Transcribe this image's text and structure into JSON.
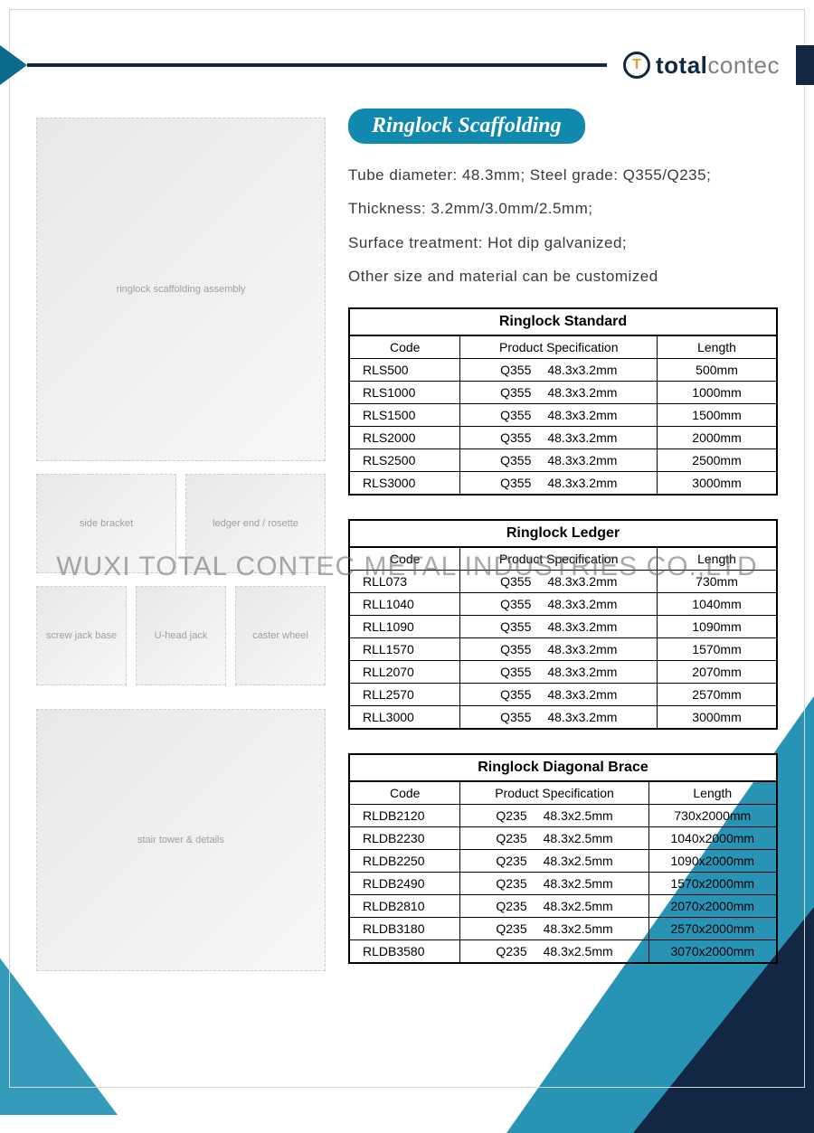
{
  "brand": {
    "strong": "total",
    "light": "contec"
  },
  "title": "Ringlock Scaffolding",
  "title_bg": "#1188ad",
  "title_fg": "#ffffff",
  "specs": [
    "Tube diameter: 48.3mm;  Steel grade: Q355/Q235;",
    "Thickness: 3.2mm/3.0mm/2.5mm;",
    "Surface treatment: Hot dip galvanized;",
    "Other size and material can be customized"
  ],
  "watermark": "WUXI TOTAL CONTEC METAL INDUSTRIES CO.,LTD",
  "colors": {
    "accent": "#1188ad",
    "dark": "#122744",
    "border": "#000000",
    "text": "#3a3a3a"
  },
  "image_placeholders": {
    "main": "ringlock scaffolding assembly",
    "row1a": "side bracket",
    "row1b": "ledger end / rosette",
    "row2a": "screw jack base",
    "row2b": "U-head jack",
    "row2c": "caster wheel",
    "stair": "stair tower & details"
  },
  "tables": [
    {
      "title": "Ringlock Standard",
      "columns": [
        "Code",
        "Product Specification",
        "Length"
      ],
      "col_widths": [
        "26%",
        "46%",
        "28%"
      ],
      "rows": [
        [
          "RLS500",
          {
            "grade": "Q355",
            "dim": "48.3x3.2mm"
          },
          "500mm"
        ],
        [
          "RLS1000",
          {
            "grade": "Q355",
            "dim": "48.3x3.2mm"
          },
          "1000mm"
        ],
        [
          "RLS1500",
          {
            "grade": "Q355",
            "dim": "48.3x3.2mm"
          },
          "1500mm"
        ],
        [
          "RLS2000",
          {
            "grade": "Q355",
            "dim": "48.3x3.2mm"
          },
          "2000mm"
        ],
        [
          "RLS2500",
          {
            "grade": "Q355",
            "dim": "48.3x3.2mm"
          },
          "2500mm"
        ],
        [
          "RLS3000",
          {
            "grade": "Q355",
            "dim": "48.3x3.2mm"
          },
          "3000mm"
        ]
      ]
    },
    {
      "title": "Ringlock Ledger",
      "columns": [
        "Code",
        "Product Specification",
        "Length"
      ],
      "col_widths": [
        "26%",
        "46%",
        "28%"
      ],
      "rows": [
        [
          "RLL073",
          {
            "grade": "Q355",
            "dim": "48.3x3.2mm"
          },
          "730mm"
        ],
        [
          "RLL1040",
          {
            "grade": "Q355",
            "dim": "48.3x3.2mm"
          },
          "1040mm"
        ],
        [
          "RLL1090",
          {
            "grade": "Q355",
            "dim": "48.3x3.2mm"
          },
          "1090mm"
        ],
        [
          "RLL1570",
          {
            "grade": "Q355",
            "dim": "48.3x3.2mm"
          },
          "1570mm"
        ],
        [
          "RLL2070",
          {
            "grade": "Q355",
            "dim": "48.3x3.2mm"
          },
          "2070mm"
        ],
        [
          "RLL2570",
          {
            "grade": "Q355",
            "dim": "48.3x3.2mm"
          },
          "2570mm"
        ],
        [
          "RLL3000",
          {
            "grade": "Q355",
            "dim": "48.3x3.2mm"
          },
          "3000mm"
        ]
      ]
    },
    {
      "title": "Ringlock Diagonal Brace",
      "columns": [
        "Code",
        "Product Specification",
        "Length"
      ],
      "col_widths": [
        "26%",
        "44%",
        "30%"
      ],
      "rows": [
        [
          "RLDB2120",
          {
            "grade": "Q235",
            "dim": "48.3x2.5mm"
          },
          "730x2000mm"
        ],
        [
          "RLDB2230",
          {
            "grade": "Q235",
            "dim": "48.3x2.5mm"
          },
          "1040x2000mm"
        ],
        [
          "RLDB2250",
          {
            "grade": "Q235",
            "dim": "48.3x2.5mm"
          },
          "1090x2000mm"
        ],
        [
          "RLDB2490",
          {
            "grade": "Q235",
            "dim": "48.3x2.5mm"
          },
          "1570x2000mm"
        ],
        [
          "RLDB2810",
          {
            "grade": "Q235",
            "dim": "48.3x2.5mm"
          },
          "2070x2000mm"
        ],
        [
          "RLDB3180",
          {
            "grade": "Q235",
            "dim": "48.3x2.5mm"
          },
          "2570x2000mm"
        ],
        [
          "RLDB3580",
          {
            "grade": "Q235",
            "dim": "48.3x2.5mm"
          },
          "3070x2000mm"
        ]
      ]
    }
  ]
}
